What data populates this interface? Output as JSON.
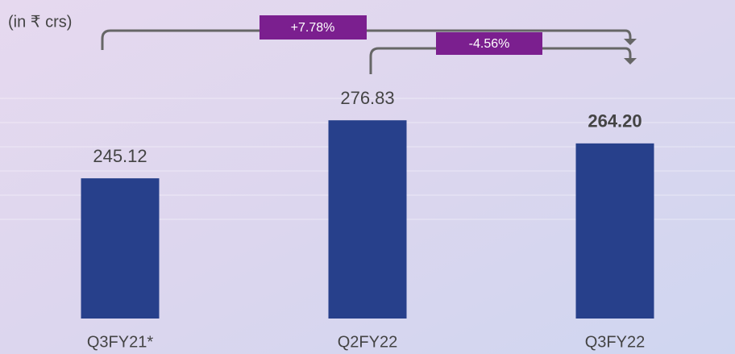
{
  "chart_data": {
    "type": "bar",
    "unit_label": "(in ₹ crs)",
    "annotations": [
      "+7.78%",
      "-4.56%"
    ],
    "categories": [
      "Q3FY21*",
      "Q2FY22",
      "Q3FY22"
    ],
    "values": [
      245.12,
      276.83,
      264.2
    ],
    "value_labels": [
      "245.12",
      "276.83",
      "264.20"
    ],
    "color": "#27408b",
    "ylim": [
      168.5,
      298.5
    ]
  }
}
